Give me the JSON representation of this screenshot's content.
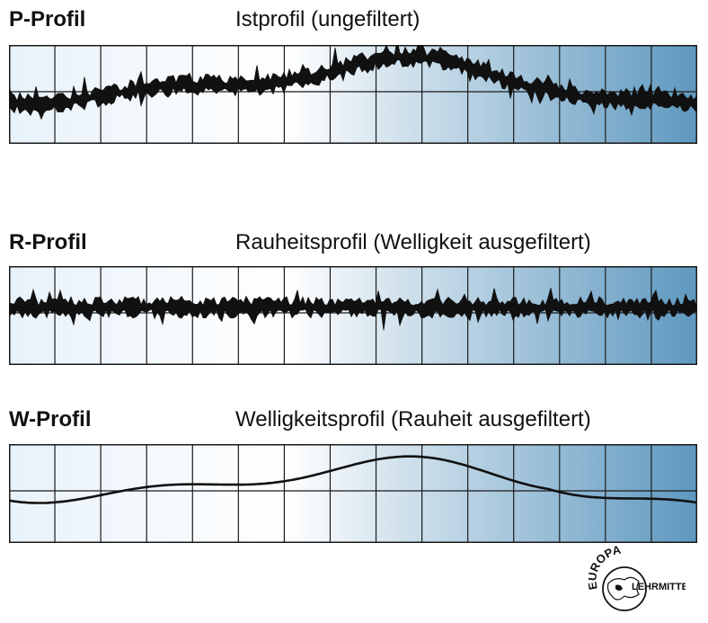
{
  "panels": [
    {
      "id": "p",
      "code": "P-Profil",
      "title": "Istprofil (ungefiltert)",
      "profile": "rough-wavy"
    },
    {
      "id": "r",
      "code": "R-Profil",
      "title": "Rauheitsprofil (Welligkeit ausgefiltert)",
      "profile": "rough"
    },
    {
      "id": "w",
      "code": "W-Profil",
      "title": "Welligkeitsprofil (Rauheit ausgefiltert)",
      "profile": "smooth-wave"
    }
  ],
  "colors": {
    "gradient_start": "#e8f2fa",
    "gradient_mid": "#ffffff",
    "gradient_end": "#5e98bf",
    "grid": "#1a1a1a",
    "trace": "#111111"
  },
  "logo": {
    "top": "EUROPA",
    "bottom": "LEHRMITTEL",
    "icon": "globe-europe-icon"
  }
}
